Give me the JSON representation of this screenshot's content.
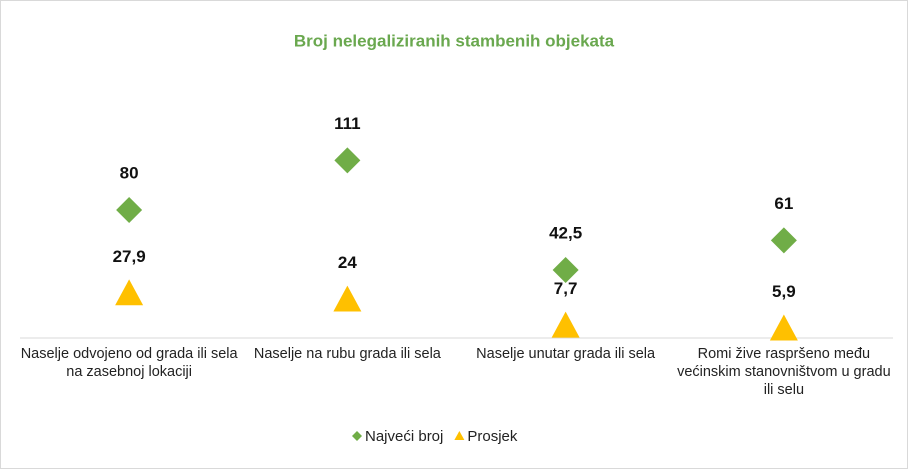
{
  "chart_data": {
    "type": "line",
    "title": "Broj nelegaliziranih stambenih objekata",
    "categories": [
      "Naselje odvojeno od grada ili sela na zasebnoj lokaciji",
      "Naselje na rubu grada ili sela",
      "Naselje unutar grada ili sela",
      "Romi žive raspršeno među većinskim stanovništvom u gradu ili selu"
    ],
    "series": [
      {
        "name": "Najveći broj",
        "color": "#70ad47",
        "marker": "diamond",
        "values": [
          80,
          111,
          42.5,
          61
        ],
        "value_labels": [
          "80",
          "111",
          "42,5",
          "61"
        ]
      },
      {
        "name": "Prosjek",
        "color": "#ffc000",
        "marker": "triangle",
        "values": [
          27.9,
          24,
          7.7,
          5.9
        ],
        "value_labels": [
          "27,9",
          "24",
          "7,7",
          "5,9"
        ]
      }
    ],
    "ylim": [
      0,
      120
    ],
    "legend": "bottom"
  }
}
